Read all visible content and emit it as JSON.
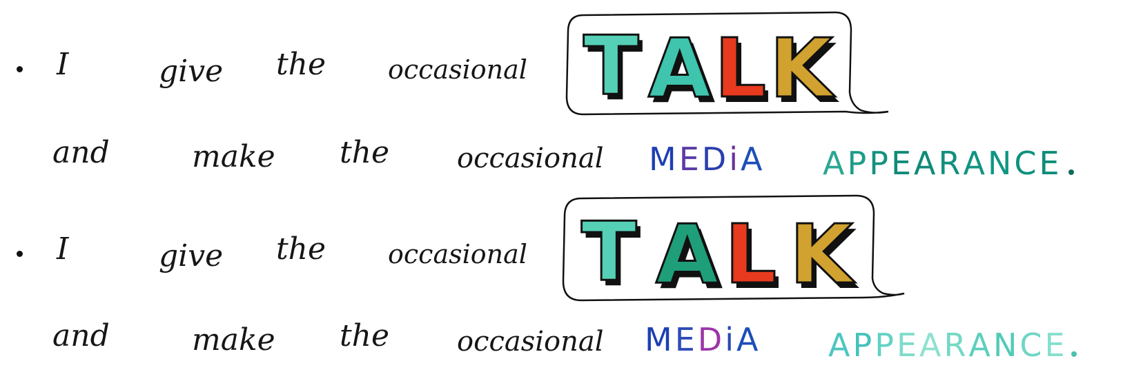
{
  "colors": {
    "ink": "#161616",
    "talk_teal": "#55d0b6",
    "talk_green": "#1f9e7a",
    "talk_red": "#e73a1e",
    "talk_gold": "#d1a22f",
    "media_blue": "#1d3fb3",
    "media_purple": "#7a2d9e",
    "appearance_teal": "#0f8f7a"
  },
  "icons": [
    "speech-bubble-icon",
    "bullet-dot-icon"
  ],
  "lines": [
    {
      "bullet": true,
      "words": [
        "I",
        "give",
        "the",
        "occasional"
      ],
      "talk": [
        "T",
        "A",
        "L",
        "K"
      ]
    },
    {
      "bullet": false,
      "words": [
        "and",
        "make",
        "the",
        "occasional"
      ],
      "media": [
        "M",
        "E",
        "D",
        "i",
        "A"
      ],
      "appearance": [
        "A",
        "P",
        "P",
        "E",
        "A",
        "R",
        "A",
        "N",
        "C",
        "E"
      ],
      "end": "."
    },
    {
      "bullet": true,
      "words": [
        "I",
        "give",
        "the",
        "occasional"
      ],
      "talk": [
        "T",
        "A",
        "L",
        "K"
      ]
    },
    {
      "bullet": false,
      "words": [
        "and",
        "make",
        "the",
        "occasional"
      ],
      "media": [
        "M",
        "E",
        "D",
        "i",
        "A"
      ],
      "appearance": [
        "A",
        "P",
        "P",
        "E",
        "A",
        "R",
        "A",
        "N",
        "C",
        "E"
      ],
      "end": "."
    }
  ]
}
